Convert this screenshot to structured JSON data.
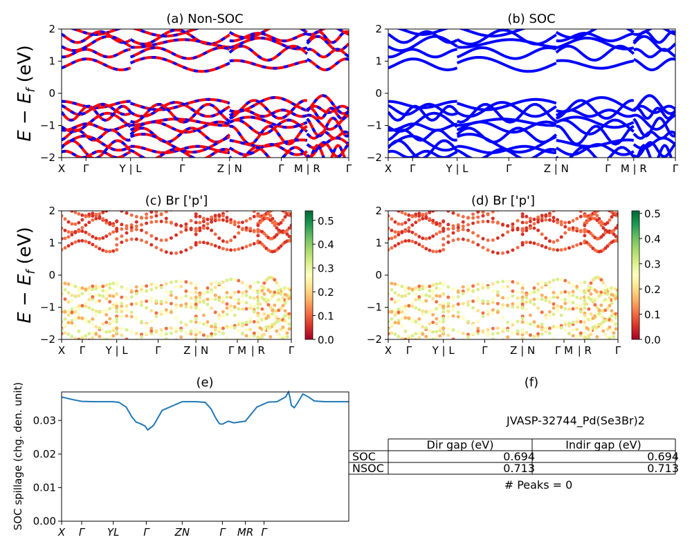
{
  "chart_data": [
    {
      "panel": "a",
      "type": "line",
      "title": "(a) Non-SOC",
      "ylabel": "E − E_f (eV)",
      "ylim": [
        -2,
        2
      ],
      "yticks": [
        "2",
        "1",
        "0",
        "−1",
        "−2"
      ],
      "kpath": [
        "X",
        "Γ",
        "Y | L",
        "Γ",
        "Z | N",
        "Γ",
        "M | R",
        "Γ"
      ],
      "kpath_pos": [
        0,
        0.085,
        0.24,
        0.42,
        0.585,
        0.765,
        0.855,
        1.0
      ],
      "segment_breaks": [
        0.24,
        0.585,
        0.855
      ],
      "colors": {
        "nonsoc": "#ff0000",
        "dash": "#0000ff"
      },
      "bands_ev_approx": {
        "conduction": [
          1.95,
          1.75,
          1.55,
          1.25,
          0.9,
          0.85
        ],
        "valence": [
          -0.25,
          -0.45,
          -0.6,
          -0.9,
          -1.15,
          -1.35,
          -1.6,
          -1.85
        ]
      }
    },
    {
      "panel": "b",
      "type": "line",
      "title": "(b) SOC",
      "ylim": [
        -2,
        2
      ],
      "yticks": [
        "2",
        "1",
        "0",
        "−1",
        "−2"
      ],
      "kpath": [
        "X",
        "Γ",
        "Y | L",
        "Γ",
        "Z | N",
        "Γ",
        "M | R",
        "Γ"
      ],
      "kpath_pos": [
        0,
        0.085,
        0.24,
        0.42,
        0.585,
        0.765,
        0.855,
        1.0
      ],
      "segment_breaks": [
        0.24,
        0.585,
        0.855
      ],
      "colors": {
        "soc": "#0000ff"
      }
    },
    {
      "panel": "c",
      "type": "scatter",
      "title": "(c)  Br ['p']",
      "ylabel": "E − E_f (eV)",
      "ylim": [
        -2,
        2
      ],
      "yticks": [
        "2",
        "1",
        "0",
        "−1",
        "−2"
      ],
      "kpath": [
        "X",
        "Γ",
        "Y | L",
        "Γ",
        "Z | N",
        "Γ M",
        "| R",
        "Γ"
      ],
      "kpath_pos": [
        0,
        0.09,
        0.24,
        0.42,
        0.585,
        0.765,
        0.855,
        1.0
      ],
      "colorbar": {
        "min": 0.0,
        "max": 0.54,
        "ticks": [
          "0.0",
          "0.1",
          "0.2",
          "0.3",
          "0.4",
          "0.5"
        ],
        "cmap": "RdYlGn"
      }
    },
    {
      "panel": "d",
      "type": "scatter",
      "title": "(d) Br ['p']",
      "ylim": [
        -2,
        2
      ],
      "yticks": [
        "2",
        "1",
        "0",
        "−1",
        "−2"
      ],
      "kpath": [
        "X",
        "Γ",
        "Y | L",
        "Γ",
        "Z | N",
        "Γ M",
        "| R",
        "Γ"
      ],
      "kpath_pos": [
        0,
        0.09,
        0.24,
        0.42,
        0.585,
        0.765,
        0.855,
        1.0
      ],
      "colorbar": {
        "min": 0.0,
        "max": 0.51,
        "ticks": [
          "0.0",
          "0.1",
          "0.2",
          "0.3",
          "0.4",
          "0.5"
        ],
        "cmap": "RdYlGn"
      }
    },
    {
      "panel": "e",
      "type": "line",
      "title": "(e)",
      "ylabel": "SOC spillage (chg. den. unit)",
      "ylim": [
        0,
        0.0385
      ],
      "yticks": [
        "0.00",
        "0.01",
        "0.02",
        "0.03"
      ],
      "ytick_values": [
        0,
        0.01,
        0.02,
        0.03
      ],
      "kpath": [
        "X",
        "Γ",
        "YL",
        "Γ",
        "ZN",
        "Γ",
        "MR",
        "Γ"
      ],
      "kpath_pos": [
        0,
        0.07,
        0.18,
        0.295,
        0.42,
        0.56,
        0.64,
        0.705
      ],
      "series": [
        {
          "color": "#1f77b4",
          "x": [
            0.0,
            0.04,
            0.07,
            0.12,
            0.18,
            0.2,
            0.225,
            0.245,
            0.26,
            0.275,
            0.29,
            0.3,
            0.32,
            0.35,
            0.42,
            0.47,
            0.5,
            0.52,
            0.535,
            0.545,
            0.55,
            0.56,
            0.58,
            0.6,
            0.64,
            0.68,
            0.72,
            0.75,
            0.78,
            0.79,
            0.795,
            0.8,
            0.81,
            0.82,
            0.84,
            0.86,
            0.88,
            0.92,
            0.96,
            1.0
          ],
          "y": [
            0.037,
            0.0362,
            0.0357,
            0.0356,
            0.0356,
            0.0354,
            0.034,
            0.031,
            0.0295,
            0.029,
            0.0284,
            0.0272,
            0.0285,
            0.033,
            0.0356,
            0.0356,
            0.0354,
            0.0335,
            0.031,
            0.0296,
            0.029,
            0.0289,
            0.0298,
            0.0293,
            0.0298,
            0.034,
            0.0355,
            0.0356,
            0.037,
            0.0385,
            0.037,
            0.0345,
            0.0338,
            0.035,
            0.0379,
            0.037,
            0.0358,
            0.0356,
            0.0356,
            0.0356
          ]
        }
      ]
    }
  ],
  "info_panel": {
    "title": "(f)",
    "material": "JVASP-32744_Pd(Se3Br)2",
    "table": {
      "headers": [
        "Dir gap (eV)",
        "Indir gap (eV)"
      ],
      "rows": [
        {
          "label": "SOC",
          "dir": "0.694",
          "indir": "0.694"
        },
        {
          "label": "NSOC",
          "dir": "0.713",
          "indir": "0.713"
        }
      ]
    },
    "peaks": "# Peaks = 0"
  }
}
